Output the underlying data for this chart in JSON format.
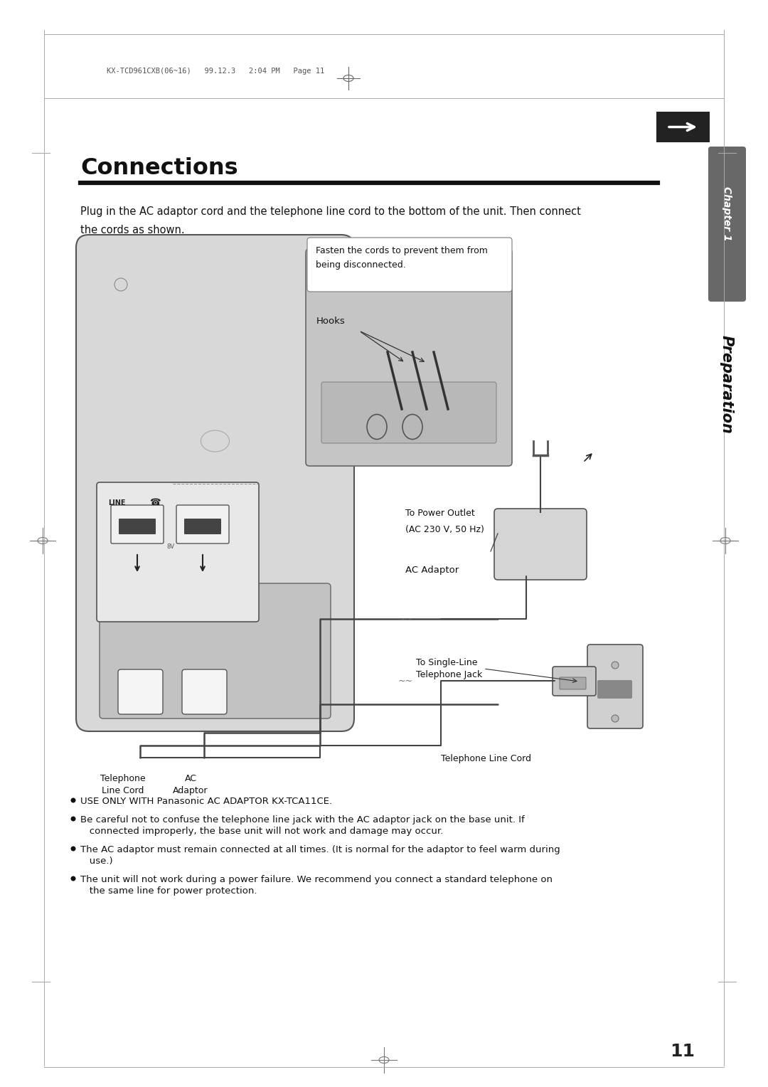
{
  "page_bg": "#ffffff",
  "title": "Connections",
  "chapter_label": "Chapter 1",
  "chapter_sublabel": "Preparation",
  "chapter_bg": "#666666",
  "header_text": "KX-TCD961CXB(06~16)   99.12.3   2:04 PM   Page 11",
  "intro_line1": "Plug in the AC adaptor cord and the telephone line cord to the bottom of the unit. Then connect",
  "intro_line2": "the cords as shown.",
  "callout1_line1": "Fasten the cords to prevent them from",
  "callout1_line2": "being disconnected.",
  "hooks_label": "Hooks",
  "label_telephone": "Telephone",
  "label_line_cord": "Line Cord",
  "label_ac": "AC",
  "label_adaptor": "Adaptor",
  "label_to_power_line1": "To Power Outlet",
  "label_to_power_line2": "(AC 230 V, 50 Hz)",
  "label_ac_adaptor": "AC Adaptor",
  "label_to_single_line1": "To Single-Line",
  "label_to_single_line2": "Telephone Jack",
  "label_tel_cord_bottom": "Telephone Line Cord",
  "bullet1": "USE ONLY WITH Panasonic AC ADAPTOR KX-TCA11CE.",
  "bullet2a": "Be careful not to confuse the telephone line jack with the AC adaptor jack on the base unit. If",
  "bullet2b": "   connected improperly, the base unit will not work and damage may occur.",
  "bullet3a": "The AC adaptor must remain connected at all times. (It is normal for the adaptor to feel warm during",
  "bullet3b": "   use.)",
  "bullet4a": "The unit will not work during a power failure. We recommend you connect a standard telephone on",
  "bullet4b": "   the same line for power protection.",
  "page_number": "11"
}
